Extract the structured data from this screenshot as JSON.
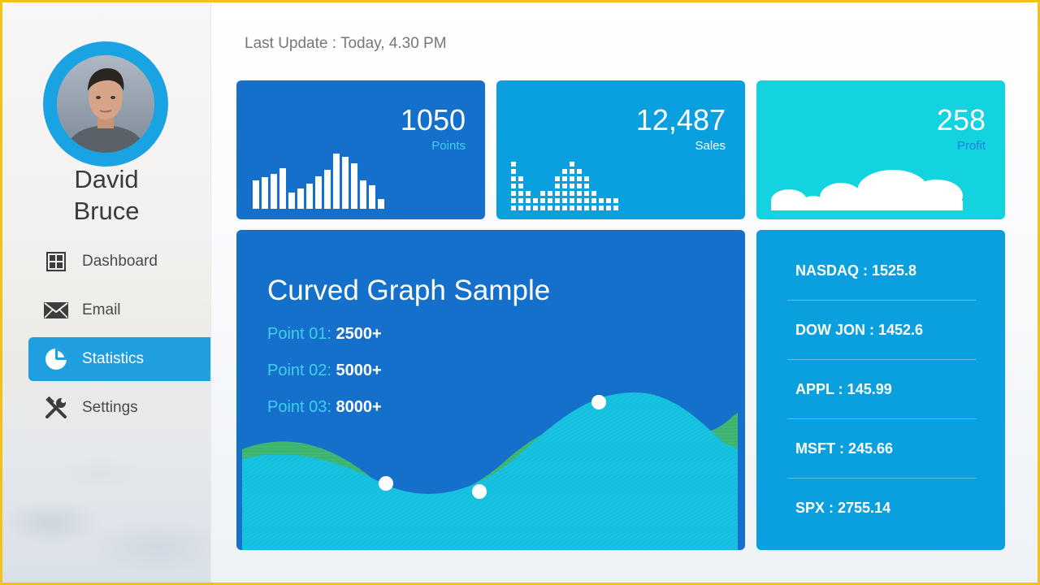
{
  "user": {
    "first_name": "David",
    "last_name": "Bruce"
  },
  "nav": {
    "items": [
      {
        "label": "Dashboard",
        "icon": "dashboard-grid-icon",
        "active": false
      },
      {
        "label": "Email",
        "icon": "envelope-icon",
        "active": false
      },
      {
        "label": "Statistics",
        "icon": "pie-chart-icon",
        "active": true
      },
      {
        "label": "Settings",
        "icon": "tools-icon",
        "active": false
      }
    ]
  },
  "header": {
    "last_update": "Last Update  : Today, 4.30 PM"
  },
  "cards": [
    {
      "value": "1050",
      "label": "Points",
      "color": "#1570cc",
      "label_color": "#3fd0ee"
    },
    {
      "value": "12,487",
      "label": "Sales",
      "color": "#0aa0df",
      "label_color": "#ffffff"
    },
    {
      "value": "258",
      "label": "Profit",
      "color": "#12d3df",
      "label_color": "#1d7fdf"
    }
  ],
  "graph": {
    "title": "Curved Graph Sample",
    "points": [
      {
        "key": "Point 01:",
        "value": "2500+"
      },
      {
        "key": "Point 02:",
        "value": "5000+"
      },
      {
        "key": "Point 03:",
        "value": "8000+"
      }
    ]
  },
  "stocks": [
    "NASDAQ : 1525.8",
    "DOW JON : 1452.6",
    "APPL : 145.99",
    "MSFT : 245.66",
    "SPX : 2755.14"
  ],
  "colors": {
    "accent": "#1f9ee0",
    "deep_blue": "#1570cc",
    "sky_blue": "#0aa0df",
    "cyan": "#12d3df",
    "wave_green": "#3fb873",
    "wave_cyan": "#17c3e0"
  }
}
